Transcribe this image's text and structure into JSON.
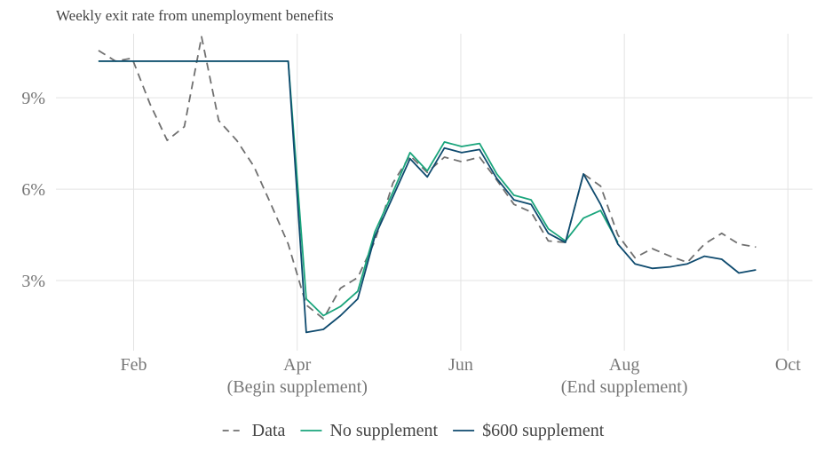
{
  "chart_data": {
    "type": "line",
    "title": "Weekly exit rate from unemployment benefits",
    "xlabel": "",
    "ylabel": "",
    "ylim": [
      0.7,
      11.1
    ],
    "xlim": [
      -0.95,
      8.3
    ],
    "x_ticks": [
      {
        "x": 0,
        "label": "Feb",
        "sublabel": ""
      },
      {
        "x": 2,
        "label": "Apr",
        "sublabel": "(Begin supplement)"
      },
      {
        "x": 4,
        "label": "Jun",
        "sublabel": ""
      },
      {
        "x": 6,
        "label": "Aug",
        "sublabel": "(End supplement)"
      },
      {
        "x": 8,
        "label": "Oct",
        "sublabel": ""
      }
    ],
    "y_ticks": [
      {
        "y": 3,
        "label": "3%"
      },
      {
        "y": 6,
        "label": "6%"
      },
      {
        "y": 9,
        "label": "9%"
      }
    ],
    "x_unit_note": "x in months since Feb (0=Feb, 2=Apr, 4=Jun, 6=Aug, 8=Oct)",
    "grid": true,
    "legend_position": "bottom",
    "series": [
      {
        "name": "Data",
        "color": "#707070",
        "dash": "9,6",
        "points": [
          [
            -0.43,
            10.55
          ],
          [
            -0.22,
            10.2
          ],
          [
            -0.02,
            10.3
          ],
          [
            0.2,
            8.8
          ],
          [
            0.41,
            7.6
          ],
          [
            0.62,
            8.05
          ],
          [
            0.83,
            11.0
          ],
          [
            1.04,
            8.25
          ],
          [
            1.26,
            7.6
          ],
          [
            1.47,
            6.75
          ],
          [
            1.68,
            5.5
          ],
          [
            1.89,
            4.2
          ],
          [
            2.11,
            2.2
          ],
          [
            2.32,
            1.75
          ],
          [
            2.53,
            2.75
          ],
          [
            2.74,
            3.1
          ],
          [
            2.95,
            4.3
          ],
          [
            3.17,
            6.2
          ],
          [
            3.38,
            7.1
          ],
          [
            3.59,
            6.55
          ],
          [
            3.8,
            7.05
          ],
          [
            4.01,
            6.9
          ],
          [
            4.23,
            7.05
          ],
          [
            4.44,
            6.3
          ],
          [
            4.65,
            5.5
          ],
          [
            4.86,
            5.25
          ],
          [
            5.07,
            4.3
          ],
          [
            5.28,
            4.25
          ],
          [
            5.5,
            6.5
          ],
          [
            5.71,
            6.1
          ],
          [
            5.92,
            4.5
          ],
          [
            6.13,
            3.75
          ],
          [
            6.34,
            4.05
          ],
          [
            6.56,
            3.8
          ],
          [
            6.77,
            3.6
          ],
          [
            6.98,
            4.2
          ],
          [
            7.19,
            4.55
          ],
          [
            7.4,
            4.2
          ],
          [
            7.61,
            4.1
          ]
        ]
      },
      {
        "name": "No supplement",
        "color": "#1aa57c",
        "dash": "",
        "points": [
          [
            -0.43,
            10.2
          ],
          [
            -0.22,
            10.2
          ],
          [
            -0.02,
            10.2
          ],
          [
            0.2,
            10.2
          ],
          [
            0.41,
            10.2
          ],
          [
            0.62,
            10.2
          ],
          [
            0.83,
            10.2
          ],
          [
            1.04,
            10.2
          ],
          [
            1.26,
            10.2
          ],
          [
            1.47,
            10.2
          ],
          [
            1.68,
            10.2
          ],
          [
            1.89,
            10.2
          ],
          [
            2.11,
            2.4
          ],
          [
            2.32,
            1.85
          ],
          [
            2.53,
            2.15
          ],
          [
            2.74,
            2.65
          ],
          [
            2.95,
            4.6
          ],
          [
            3.17,
            5.9
          ],
          [
            3.38,
            7.2
          ],
          [
            3.59,
            6.6
          ],
          [
            3.8,
            7.55
          ],
          [
            4.01,
            7.4
          ],
          [
            4.23,
            7.5
          ],
          [
            4.44,
            6.5
          ],
          [
            4.65,
            5.8
          ],
          [
            4.86,
            5.65
          ],
          [
            5.07,
            4.7
          ],
          [
            5.28,
            4.3
          ],
          [
            5.5,
            5.05
          ],
          [
            5.71,
            5.3
          ],
          [
            5.92,
            4.25
          ]
        ]
      },
      {
        "name": "$600 supplement",
        "color": "#0e4a6e",
        "dash": "",
        "points": [
          [
            -0.43,
            10.2
          ],
          [
            -0.22,
            10.2
          ],
          [
            -0.02,
            10.2
          ],
          [
            0.2,
            10.2
          ],
          [
            0.41,
            10.2
          ],
          [
            0.62,
            10.2
          ],
          [
            0.83,
            10.2
          ],
          [
            1.04,
            10.2
          ],
          [
            1.26,
            10.2
          ],
          [
            1.47,
            10.2
          ],
          [
            1.68,
            10.2
          ],
          [
            1.89,
            10.2
          ],
          [
            2.11,
            1.3
          ],
          [
            2.32,
            1.4
          ],
          [
            2.53,
            1.85
          ],
          [
            2.74,
            2.4
          ],
          [
            2.95,
            4.45
          ],
          [
            3.17,
            5.75
          ],
          [
            3.38,
            7.0
          ],
          [
            3.59,
            6.4
          ],
          [
            3.8,
            7.35
          ],
          [
            4.01,
            7.2
          ],
          [
            4.23,
            7.3
          ],
          [
            4.44,
            6.35
          ],
          [
            4.65,
            5.65
          ],
          [
            4.86,
            5.5
          ],
          [
            5.07,
            4.55
          ],
          [
            5.28,
            4.25
          ],
          [
            5.5,
            6.5
          ],
          [
            5.71,
            5.5
          ],
          [
            5.92,
            4.2
          ],
          [
            6.13,
            3.55
          ],
          [
            6.34,
            3.4
          ],
          [
            6.56,
            3.45
          ],
          [
            6.77,
            3.55
          ],
          [
            6.98,
            3.8
          ],
          [
            7.19,
            3.7
          ],
          [
            7.4,
            3.25
          ],
          [
            7.61,
            3.35
          ]
        ]
      }
    ]
  }
}
